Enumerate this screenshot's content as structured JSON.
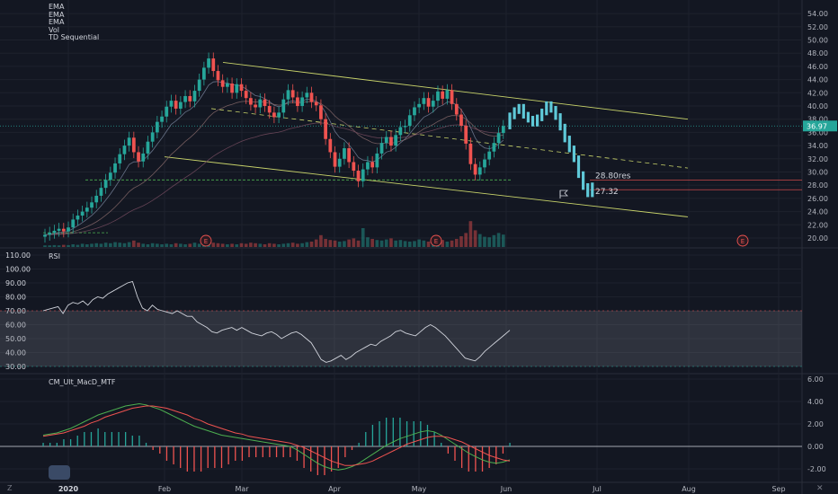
{
  "legend": {
    "items": [
      "EMA",
      "EMA",
      "EMA",
      "Vol",
      "TD Sequential"
    ]
  },
  "panels": {
    "rsi_label": "RSI",
    "macd_label": "CM_Ult_MacD_MTF"
  },
  "badges": {
    "earnings": "E",
    "z": "Z",
    "close": "✕"
  },
  "price_labels": {
    "current": "36.97",
    "res": "28.80res",
    "support": "27.32"
  },
  "colors": {
    "up": "#26a69a",
    "down": "#ef5350",
    "projection": "#5fc9d8",
    "channel": "#c8d36a",
    "rsi": "#d1d4dc",
    "macd": "#4caf50",
    "signal": "#ef5350"
  },
  "chart_data": [
    {
      "type": "candlestick",
      "title": "",
      "x_ticks": [
        "2020",
        "Feb",
        "Mar",
        "Apr",
        "May",
        "Jun",
        "Jul",
        "Aug",
        "Sep"
      ],
      "y_ticks": [
        20,
        22,
        24,
        26,
        28,
        30,
        32,
        34,
        36,
        38,
        40,
        42,
        44,
        46,
        48,
        50,
        52,
        54
      ],
      "ylim": [
        19,
        55
      ],
      "current_price": 36.97,
      "resistance": 28.8,
      "support": 27.32,
      "close": [
        20.5,
        20.8,
        21.1,
        21.4,
        21.0,
        21.6,
        22.8,
        23.4,
        24.0,
        24.6,
        25.4,
        26.4,
        27.6,
        28.8,
        29.9,
        31.3,
        32.7,
        34.0,
        35.2,
        33.0,
        31.6,
        32.8,
        34.6,
        36.0,
        37.6,
        38.4,
        39.9,
        40.8,
        39.6,
        40.6,
        41.5,
        40.7,
        42.3,
        44.0,
        45.8,
        47.2,
        45.3,
        43.9,
        42.9,
        43.4,
        42.0,
        43.3,
        42.3,
        41.2,
        40.2,
        39.8,
        41.0,
        40.0,
        39.0,
        38.3,
        39.0,
        41.0,
        42.4,
        41.3,
        40.0,
        41.3,
        42.0,
        40.6,
        40.1,
        38.0,
        35.0,
        33.0,
        30.8,
        32.0,
        33.6,
        31.5,
        30.2,
        28.6,
        30.4,
        31.5,
        30.7,
        32.8,
        34.4,
        35.3,
        34.0,
        35.6,
        36.8,
        37.0,
        38.6,
        39.8,
        40.3,
        41.2,
        39.9,
        40.8,
        42.2,
        41.1,
        42.4,
        40.3,
        38.7,
        37.0,
        34.3,
        31.2,
        29.6,
        30.7,
        31.9,
        33.1,
        34.4,
        35.9,
        36.97
      ],
      "volume": [
        0.3,
        0.3,
        0.35,
        0.3,
        0.4,
        0.35,
        0.5,
        0.4,
        0.6,
        0.5,
        0.6,
        0.7,
        0.6,
        0.8,
        0.7,
        0.9,
        0.8,
        0.7,
        0.9,
        1.2,
        0.8,
        0.6,
        0.5,
        0.7,
        0.6,
        0.5,
        0.6,
        0.5,
        0.7,
        0.6,
        0.5,
        0.6,
        0.8,
        0.6,
        0.7,
        0.9,
        0.8,
        0.7,
        0.6,
        0.5,
        0.6,
        0.5,
        0.7,
        0.6,
        0.8,
        0.7,
        0.6,
        0.5,
        0.7,
        0.6,
        0.5,
        0.6,
        0.7,
        0.8,
        0.6,
        0.7,
        0.9,
        1.0,
        1.4,
        2.2,
        1.5,
        1.3,
        1.2,
        1.0,
        1.1,
        1.4,
        1.6,
        1.2,
        3.5,
        1.8,
        1.5,
        1.3,
        1.2,
        1.4,
        1.6,
        1.2,
        1.3,
        1.1,
        1.0,
        1.1,
        1.4,
        1.2,
        1.0,
        0.9,
        1.1,
        1.3,
        1.0,
        1.2,
        1.5,
        2.0,
        2.6,
        4.8,
        3.1,
        2.4,
        1.9,
        1.8,
        2.2,
        2.6,
        2.3
      ],
      "projection": [
        38.5,
        39.3,
        39.8,
        38.6,
        38.0,
        37.4,
        38.2,
        39.1,
        40.2,
        39.5,
        38.4,
        36.8,
        35.0,
        33.5,
        32.0,
        29.6,
        27.8,
        26.7,
        27.9
      ]
    },
    {
      "type": "line",
      "title": "RSI",
      "y_ticks": [
        30,
        40,
        50,
        60,
        70,
        80,
        90,
        100,
        110
      ],
      "ylim": [
        28,
        112
      ],
      "band": [
        30,
        70
      ],
      "values": [
        70,
        71,
        72,
        73,
        68,
        74,
        76,
        75,
        77,
        74,
        78,
        80,
        79,
        82,
        84,
        86,
        88,
        90,
        91,
        80,
        72,
        70,
        74,
        71,
        70,
        69,
        68,
        70,
        68,
        66,
        66,
        62,
        60,
        58,
        55,
        54,
        56,
        57,
        58,
        56,
        58,
        56,
        54,
        53,
        52,
        54,
        55,
        53,
        50,
        52,
        54,
        55,
        53,
        50,
        47,
        41,
        35,
        33,
        34,
        36,
        38,
        35,
        37,
        40,
        42,
        44,
        46,
        45,
        48,
        50,
        52,
        55,
        56,
        54,
        53,
        52,
        55,
        58,
        60,
        58,
        55,
        52,
        48,
        44,
        40,
        36,
        35,
        34,
        37,
        41,
        44,
        47,
        50,
        53,
        56
      ]
    },
    {
      "type": "line",
      "title": "CM_Ult_MacD_MTF",
      "y_ticks": [
        -2,
        0,
        2,
        4,
        6
      ],
      "ylim": [
        -3,
        6.5
      ],
      "macd": [
        1.0,
        1.1,
        1.2,
        1.4,
        1.6,
        1.9,
        2.2,
        2.5,
        2.8,
        3.0,
        3.2,
        3.4,
        3.6,
        3.7,
        3.8,
        3.7,
        3.5,
        3.3,
        3.0,
        2.7,
        2.4,
        2.1,
        1.8,
        1.6,
        1.4,
        1.2,
        1.0,
        0.9,
        0.8,
        0.7,
        0.6,
        0.5,
        0.4,
        0.3,
        0.2,
        0.1,
        0.0,
        -0.3,
        -0.7,
        -1.1,
        -1.5,
        -1.8,
        -2.0,
        -2.1,
        -2.0,
        -1.8,
        -1.5,
        -1.1,
        -0.7,
        -0.3,
        0.1,
        0.4,
        0.7,
        0.9,
        1.1,
        1.3,
        1.4,
        1.3,
        1.0,
        0.6,
        0.2,
        -0.2,
        -0.6,
        -0.9,
        -1.2,
        -1.4,
        -1.5,
        -1.4,
        -1.2
      ],
      "signal": [
        0.9,
        1.0,
        1.1,
        1.2,
        1.4,
        1.6,
        1.8,
        2.1,
        2.3,
        2.6,
        2.8,
        3.0,
        3.2,
        3.4,
        3.5,
        3.6,
        3.6,
        3.5,
        3.4,
        3.2,
        3.0,
        2.8,
        2.5,
        2.3,
        2.0,
        1.8,
        1.6,
        1.4,
        1.2,
        1.1,
        0.9,
        0.8,
        0.7,
        0.6,
        0.5,
        0.4,
        0.3,
        0.1,
        -0.1,
        -0.4,
        -0.7,
        -1.0,
        -1.3,
        -1.5,
        -1.7,
        -1.7,
        -1.6,
        -1.5,
        -1.3,
        -1.0,
        -0.7,
        -0.4,
        -0.1,
        0.2,
        0.4,
        0.6,
        0.8,
        0.9,
        0.9,
        0.8,
        0.6,
        0.4,
        0.1,
        -0.2,
        -0.5,
        -0.8,
        -1.0,
        -1.2,
        -1.3
      ]
    }
  ]
}
